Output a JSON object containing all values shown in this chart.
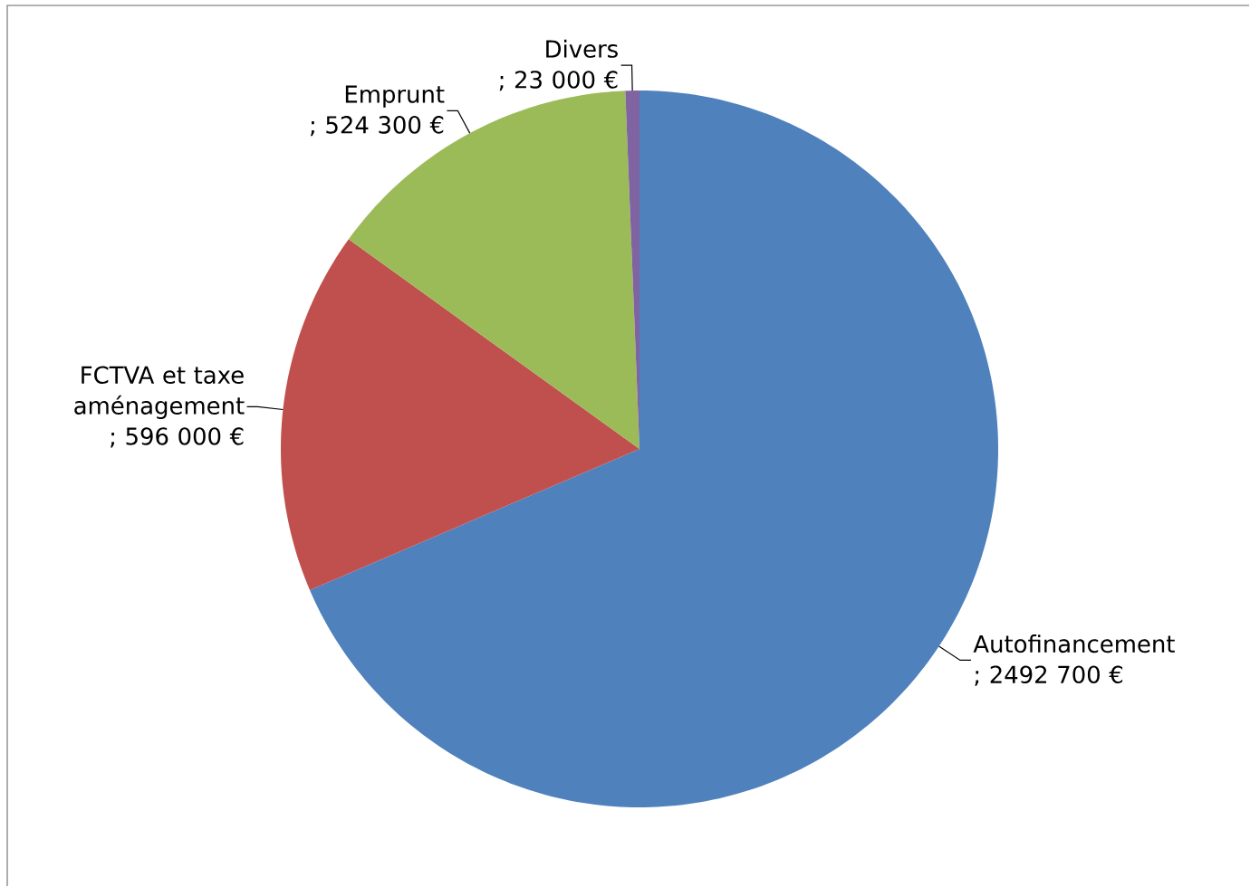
{
  "chart_data": {
    "type": "pie",
    "categories": [
      "Autofinancement",
      "FCTVA et taxe aménagement",
      "Emprunt",
      "Divers"
    ],
    "values": [
      2492700,
      596000,
      524300,
      23000
    ],
    "value_labels": [
      "; 2492 700 €",
      "; 596 000 €",
      "; 524 300 €",
      "; 23 000 €"
    ],
    "colors": [
      "#4f81bd",
      "#c0504d",
      "#9bbb59",
      "#8064a2"
    ]
  }
}
